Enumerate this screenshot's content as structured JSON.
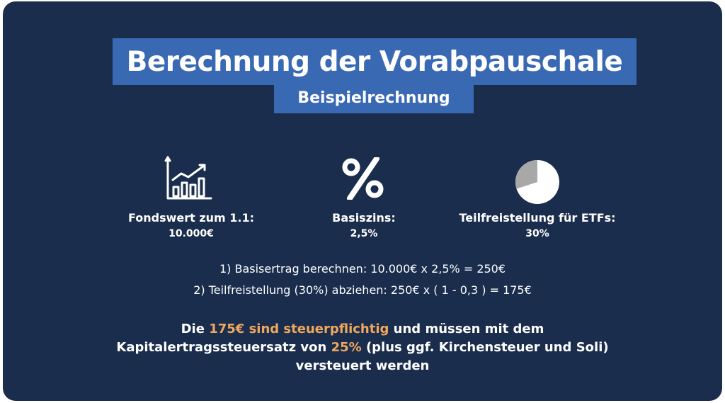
{
  "header": {
    "title": "Berechnung der Vorabpauschale",
    "subtitle": "Beispielrechnung"
  },
  "stats": [
    {
      "icon": "growth-chart-icon",
      "label": "Fondswert zum 1.1:",
      "value": "10.000€"
    },
    {
      "icon": "percent-icon",
      "label": "Basiszins:",
      "value": "2,5%"
    },
    {
      "icon": "pie-chart-icon",
      "label": "Teilfreistellung für ETFs:",
      "value": "30%",
      "pie_fraction": 0.3
    }
  ],
  "calculation": {
    "step1": "1) Basisertrag berechnen: 10.000€ x 2,5% = 250€",
    "step2": "2) Teilfreistellung (30%) abziehen: 250€ x ( 1 - 0,3 ) = 175€"
  },
  "summary": {
    "line1_pre": "Die ",
    "line1_highlight": "175€ sind steuerpflichtig",
    "line1_post": " und müssen mit dem",
    "line2_pre": "Kapitalertragssteuersatz von ",
    "line2_highlight": "25%",
    "line2_post": " (plus ggf. Kirchensteuer und Soli)",
    "line3": "versteuert werden"
  },
  "colors": {
    "background": "#1a2d4d",
    "title_box": "#3a69b3",
    "highlight": "#f0a85e"
  }
}
